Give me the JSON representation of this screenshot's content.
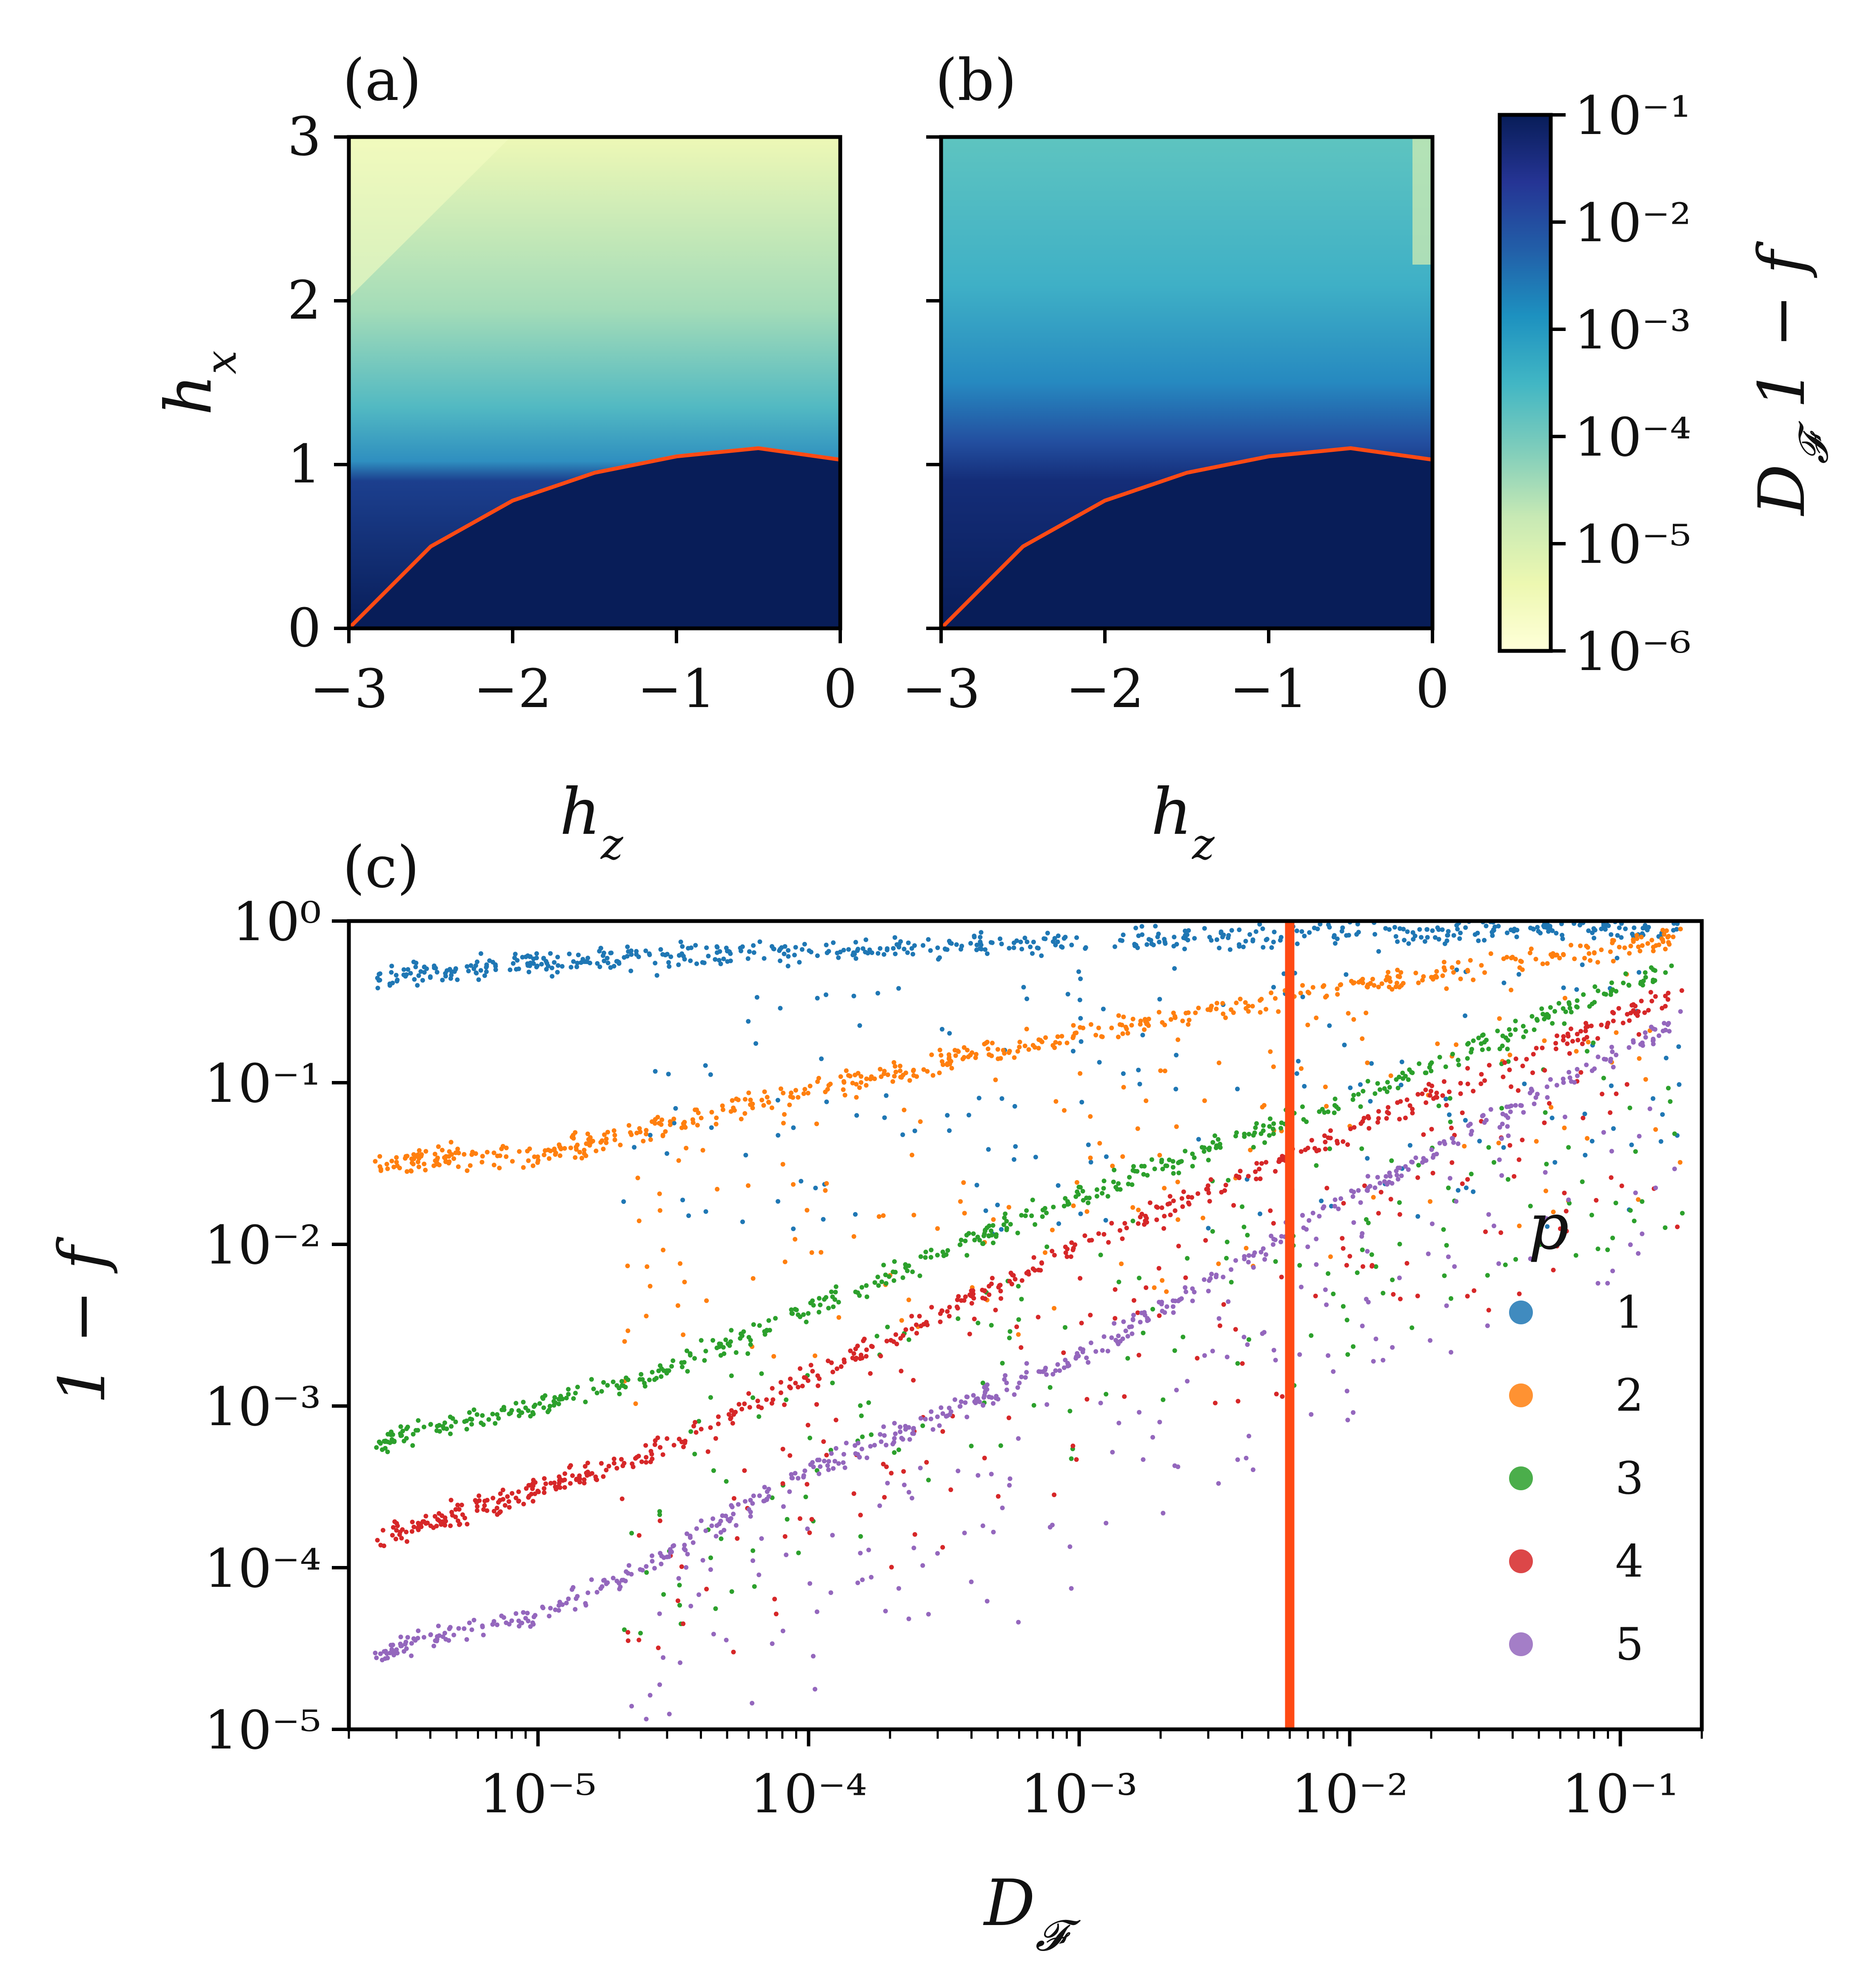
{
  "panels": {
    "a": {
      "label": "(a)"
    },
    "b": {
      "label": "(b)"
    },
    "c": {
      "label": "(c)"
    }
  },
  "colorbar": {
    "label": "D_F   1 − f",
    "range": [
      1e-06,
      0.1
    ],
    "scale": "log",
    "ticks": [
      "10⁻⁶",
      "10⁻⁵",
      "10⁻⁴",
      "10⁻³",
      "10⁻²",
      "10⁻¹"
    ],
    "colors": [
      "#ffffd9",
      "#edf8b1",
      "#c7e9b4",
      "#7fcdbb",
      "#41b6c4",
      "#1d91c0",
      "#225ea8",
      "#253494",
      "#081d58"
    ]
  },
  "boundary_color": "#ff4a14",
  "chart_data": [
    {
      "type": "heatmap",
      "panel": "(a)",
      "xlabel": "h_z",
      "ylabel": "h_x",
      "xlim": [
        -3,
        0
      ],
      "ylim": [
        0,
        3
      ],
      "xticks": [
        "−3",
        "−2",
        "−1",
        "0"
      ],
      "yticks": [
        "0",
        "1",
        "2",
        "3"
      ],
      "quantity": "D_F",
      "boundary_curve": {
        "x": [
          -3.0,
          -2.5,
          -2.0,
          -1.5,
          -1.0,
          -0.5,
          0.0
        ],
        "y": [
          0.0,
          0.5,
          0.78,
          0.95,
          1.05,
          1.1,
          1.03
        ]
      }
    },
    {
      "type": "heatmap",
      "panel": "(b)",
      "xlabel": "h_z",
      "ylabel": "",
      "xlim": [
        -3,
        0
      ],
      "ylim": [
        0,
        3
      ],
      "xticks": [
        "−3",
        "−2",
        "−1",
        "0"
      ],
      "quantity": "1 − f",
      "boundary_curve": {
        "x": [
          -3.0,
          -2.5,
          -2.0,
          -1.5,
          -1.0,
          -0.5,
          0.0
        ],
        "y": [
          0.0,
          0.5,
          0.78,
          0.95,
          1.05,
          1.1,
          1.03
        ]
      }
    },
    {
      "type": "scatter",
      "panel": "(c)",
      "xlabel": "D_F",
      "ylabel": "1 − f",
      "xscale": "log",
      "yscale": "log",
      "xlim": [
        2e-06,
        0.2
      ],
      "ylim": [
        1e-05,
        1
      ],
      "xticks": [
        "10⁻⁵",
        "10⁻⁴",
        "10⁻³",
        "10⁻²",
        "10⁻¹"
      ],
      "yticks": [
        "10⁰",
        "10⁻¹",
        "10⁻²",
        "10⁻³",
        "10⁻⁴",
        "10⁻⁵"
      ],
      "vertical_line": {
        "x": 0.006,
        "color": "#ff4a14"
      },
      "legend": {
        "title": "p",
        "placement": "right"
      },
      "series": [
        {
          "name": "1",
          "color": "#1f77b4",
          "x": [
            2.5e-06,
            1e-05,
            2.5e-05,
            0.0001,
            0.001,
            0.01,
            0.17
          ],
          "y": [
            0.45,
            0.55,
            0.6,
            0.65,
            0.75,
            0.85,
            0.9
          ]
        },
        {
          "name": "2",
          "color": "#ff7f0e",
          "x": [
            2.5e-06,
            1e-05,
            2.5e-05,
            0.0001,
            0.001,
            0.01,
            0.17
          ],
          "y": [
            0.033,
            0.035,
            0.05,
            0.09,
            0.2,
            0.4,
            0.8
          ]
        },
        {
          "name": "3",
          "color": "#2ca02c",
          "x": [
            2.5e-06,
            1e-05,
            2.5e-05,
            0.0001,
            0.001,
            0.01,
            0.17
          ],
          "y": [
            0.0006,
            0.001,
            0.0015,
            0.004,
            0.02,
            0.08,
            0.55
          ]
        },
        {
          "name": "4",
          "color": "#d62728",
          "x": [
            2.5e-06,
            1e-05,
            2.5e-05,
            0.0001,
            0.001,
            0.01,
            0.17
          ],
          "y": [
            0.00015,
            0.0003,
            0.0005,
            0.0015,
            0.01,
            0.05,
            0.38
          ]
        },
        {
          "name": "5",
          "color": "#9467bd",
          "x": [
            2.5e-06,
            1e-05,
            2.5e-05,
            0.0001,
            0.001,
            0.01,
            0.17
          ],
          "y": [
            3e-05,
            5e-05,
            0.0001,
            0.0004,
            0.002,
            0.02,
            0.25
          ]
        }
      ]
    }
  ]
}
